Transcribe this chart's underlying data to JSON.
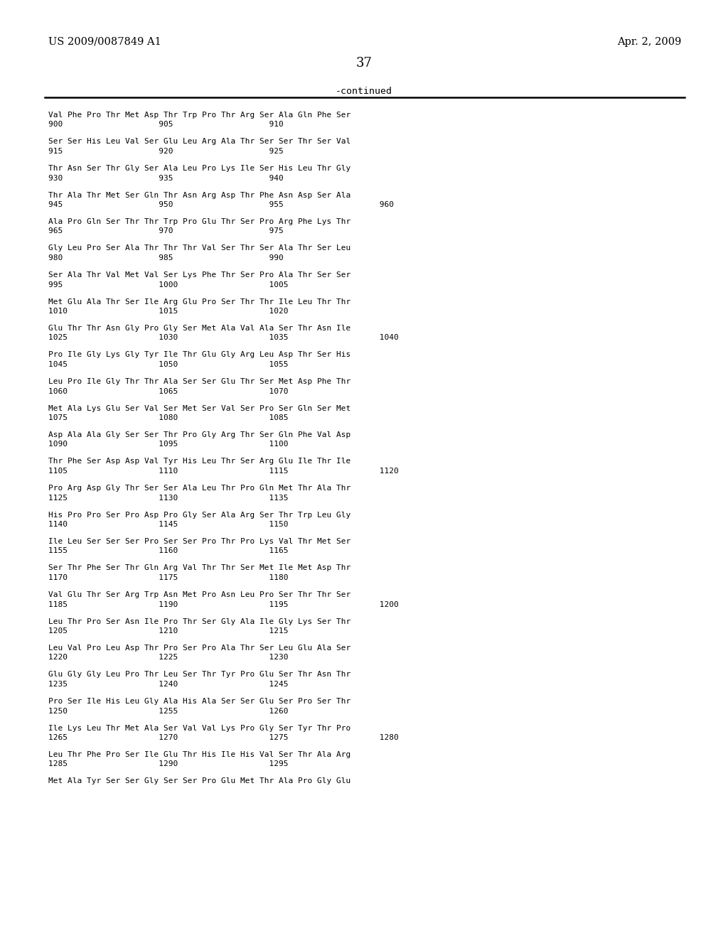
{
  "header_left": "US 2009/0087849 A1",
  "header_right": "Apr. 2, 2009",
  "page_number": "37",
  "continued_label": "-continued",
  "background_color": "#ffffff",
  "text_color": "#000000",
  "content_entries": [
    [
      "Val Phe Pro Thr Met Asp Thr Trp Pro Thr Arg Ser Ala Gln Phe Ser",
      "900                    905                    910"
    ],
    [
      "Ser Ser His Leu Val Ser Glu Leu Arg Ala Thr Ser Ser Thr Ser Val",
      "915                    920                    925"
    ],
    [
      "Thr Asn Ser Thr Gly Ser Ala Leu Pro Lys Ile Ser His Leu Thr Gly",
      "930                    935                    940"
    ],
    [
      "Thr Ala Thr Met Ser Gln Thr Asn Arg Asp Thr Phe Asn Asp Ser Ala",
      "945                    950                    955                    960"
    ],
    [
      "Ala Pro Gln Ser Thr Thr Trp Pro Glu Thr Ser Pro Arg Phe Lys Thr",
      "965                    970                    975"
    ],
    [
      "Gly Leu Pro Ser Ala Thr Thr Thr Val Ser Thr Ser Ala Thr Ser Leu",
      "980                    985                    990"
    ],
    [
      "Ser Ala Thr Val Met Val Ser Lys Phe Thr Ser Pro Ala Thr Ser Ser",
      "995                    1000                   1005"
    ],
    [
      "Met Glu Ala Thr Ser Ile Arg Glu Pro Ser Thr Thr Ile Leu Thr Thr",
      "1010                   1015                   1020"
    ],
    [
      "Glu Thr Thr Asn Gly Pro Gly Ser Met Ala Val Ala Ser Thr Asn Ile",
      "1025                   1030                   1035                   1040"
    ],
    [
      "Pro Ile Gly Lys Gly Tyr Ile Thr Glu Gly Arg Leu Asp Thr Ser His",
      "1045                   1050                   1055"
    ],
    [
      "Leu Pro Ile Gly Thr Thr Ala Ser Ser Glu Thr Ser Met Asp Phe Thr",
      "1060                   1065                   1070"
    ],
    [
      "Met Ala Lys Glu Ser Val Ser Met Ser Val Ser Pro Ser Gln Ser Met",
      "1075                   1080                   1085"
    ],
    [
      "Asp Ala Ala Gly Ser Ser Thr Pro Gly Arg Thr Ser Gln Phe Val Asp",
      "1090                   1095                   1100"
    ],
    [
      "Thr Phe Ser Asp Asp Val Tyr His Leu Thr Ser Arg Glu Ile Thr Ile",
      "1105                   1110                   1115                   1120"
    ],
    [
      "Pro Arg Asp Gly Thr Ser Ser Ala Leu Thr Pro Gln Met Thr Ala Thr",
      "1125                   1130                   1135"
    ],
    [
      "His Pro Pro Ser Pro Asp Pro Gly Ser Ala Arg Ser Thr Trp Leu Gly",
      "1140                   1145                   1150"
    ],
    [
      "Ile Leu Ser Ser Ser Pro Ser Ser Pro Thr Pro Lys Val Thr Met Ser",
      "1155                   1160                   1165"
    ],
    [
      "Ser Thr Phe Ser Thr Gln Arg Val Thr Thr Ser Met Ile Met Asp Thr",
      "1170                   1175                   1180"
    ],
    [
      "Val Glu Thr Ser Arg Trp Asn Met Pro Asn Leu Pro Ser Thr Thr Ser",
      "1185                   1190                   1195                   1200"
    ],
    [
      "Leu Thr Pro Ser Asn Ile Pro Thr Ser Gly Ala Ile Gly Lys Ser Thr",
      "1205                   1210                   1215"
    ],
    [
      "Leu Val Pro Leu Asp Thr Pro Ser Pro Ala Thr Ser Leu Glu Ala Ser",
      "1220                   1225                   1230"
    ],
    [
      "Glu Gly Gly Leu Pro Thr Leu Ser Thr Tyr Pro Glu Ser Thr Asn Thr",
      "1235                   1240                   1245"
    ],
    [
      "Pro Ser Ile His Leu Gly Ala His Ala Ser Ser Glu Ser Pro Ser Thr",
      "1250                   1255                   1260"
    ],
    [
      "Ile Lys Leu Thr Met Ala Ser Val Val Lys Pro Gly Ser Tyr Thr Pro",
      "1265                   1270                   1275                   1280"
    ],
    [
      "Leu Thr Phe Pro Ser Ile Glu Thr His Ile His Val Ser Thr Ala Arg",
      "1285                   1290                   1295"
    ],
    [
      "Met Ala Tyr Ser Ser Gly Ser Ser Pro Glu Met Thr Ala Pro Gly Glu",
      ""
    ]
  ]
}
